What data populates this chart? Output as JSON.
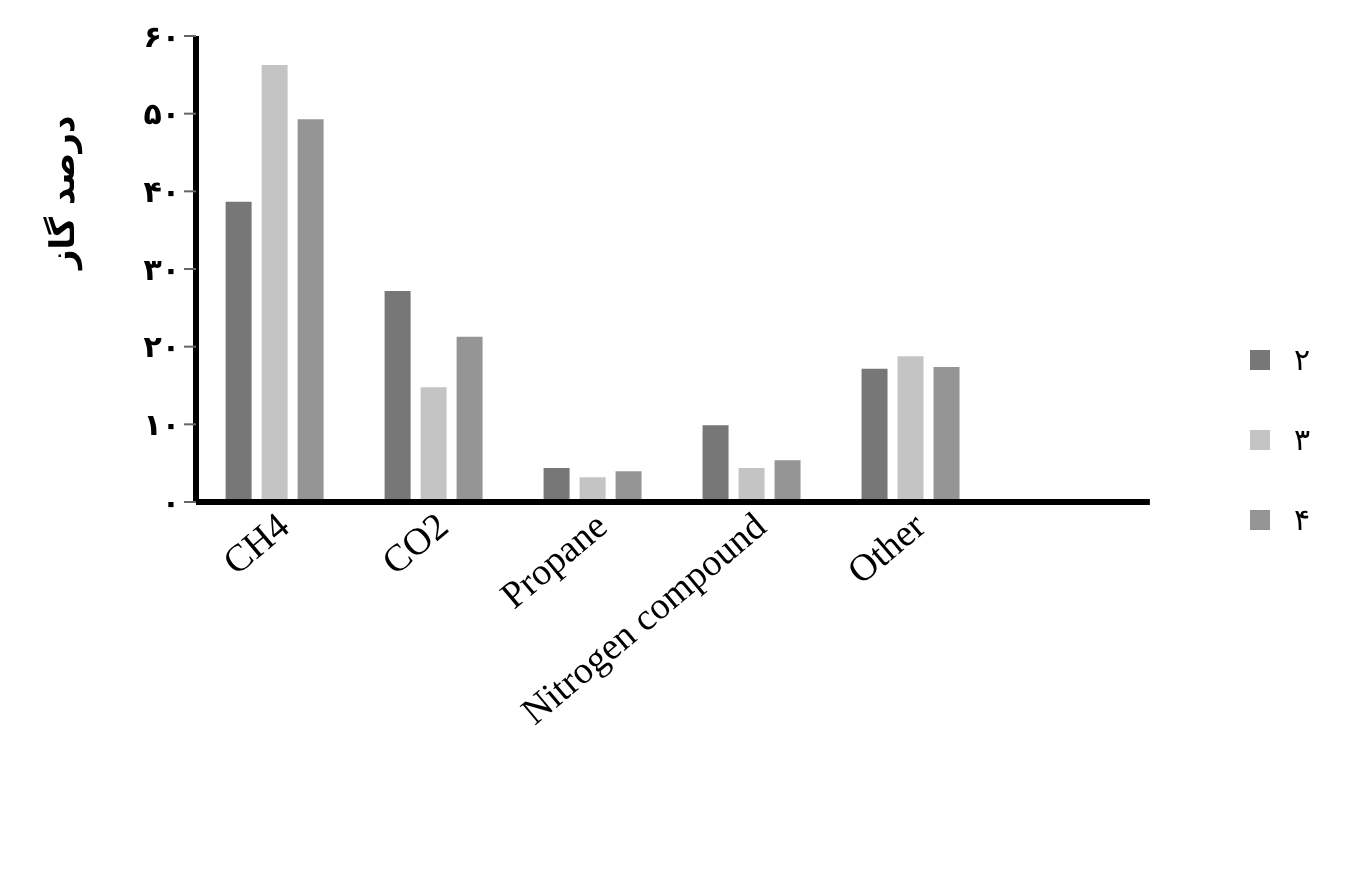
{
  "chart_data": {
    "type": "bar",
    "ylabel": "درصد گاز",
    "categories": [
      "CH4",
      "CO2",
      "Propane",
      "Nitrogen compound",
      "Other",
      null
    ],
    "series": [
      {
        "name": "۲",
        "color": "#777777",
        "values": [
          38.8,
          27.3,
          4.5,
          10.0,
          17.3,
          null
        ]
      },
      {
        "name": "۳",
        "color": "#c4c4c4",
        "values": [
          56.4,
          14.9,
          3.3,
          4.5,
          18.9,
          null
        ]
      },
      {
        "name": "۴",
        "color": "#959595",
        "values": [
          49.4,
          21.4,
          4.1,
          5.5,
          17.5,
          null
        ]
      }
    ],
    "ylim": [
      0,
      60
    ],
    "yticks": [
      {
        "value": 0,
        "label": "۰"
      },
      {
        "value": 10,
        "label": "۱۰"
      },
      {
        "value": 20,
        "label": "۲۰"
      },
      {
        "value": 30,
        "label": "۳۰"
      },
      {
        "value": 40,
        "label": "۴۰"
      },
      {
        "value": 50,
        "label": "۵۰"
      },
      {
        "value": 60,
        "label": "۶۰"
      }
    ],
    "grid": false,
    "legend": "right"
  }
}
